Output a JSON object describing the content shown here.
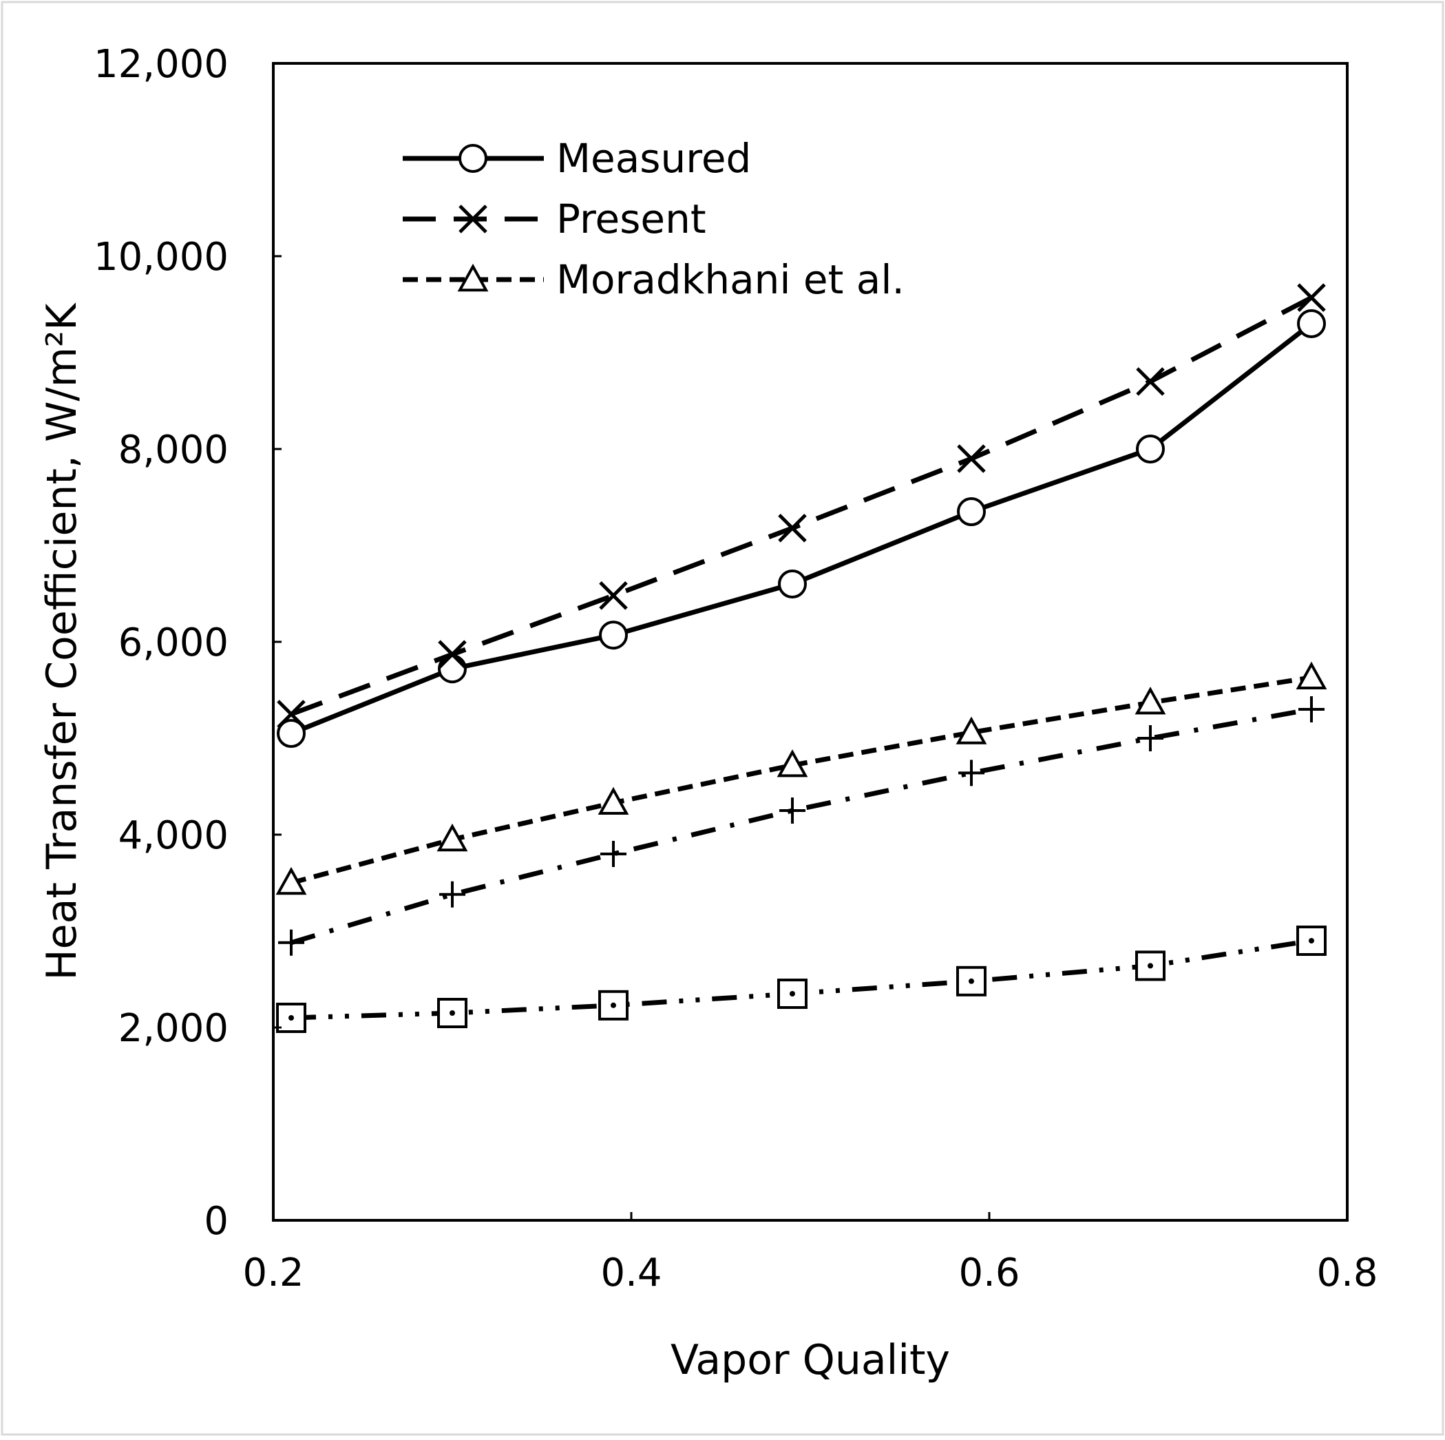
{
  "chart_data": {
    "type": "line",
    "xlabel": "Vapor Quality",
    "ylabel": "Heat Transfer Coefficient, W/m²K",
    "xlim": [
      0.2,
      0.8
    ],
    "ylim": [
      0,
      12000
    ],
    "xticks": [
      0.2,
      0.4,
      0.6,
      0.8
    ],
    "xtick_labels": [
      "0.2",
      "0.4",
      "0.6",
      "0.8"
    ],
    "yticks": [
      0,
      2000,
      4000,
      6000,
      8000,
      10000,
      12000
    ],
    "ytick_labels": [
      "0",
      "2,000",
      "4,000",
      "6,000",
      "8,000",
      "10,000",
      "12,000"
    ],
    "grid": false,
    "legend_position": "top-left",
    "x": [
      0.21,
      0.3,
      0.39,
      0.49,
      0.59,
      0.69,
      0.78
    ],
    "series": [
      {
        "name": "Measured",
        "marker": "circle",
        "line_style": "solid",
        "values": [
          5050,
          5720,
          6070,
          6600,
          7350,
          8000,
          9300
        ]
      },
      {
        "name": "Present",
        "marker": "x",
        "line_style": "long-dash",
        "values": [
          5250,
          5870,
          6480,
          7180,
          7900,
          8700,
          9570
        ]
      },
      {
        "name": "Moradkhani et al.",
        "marker": "triangle",
        "line_style": "short-dash",
        "values": [
          3500,
          3950,
          4330,
          4720,
          5060,
          5370,
          5630
        ]
      },
      {
        "name": "",
        "marker": "plus",
        "line_style": "dash-dot",
        "values": [
          2880,
          3380,
          3800,
          4250,
          4640,
          5000,
          5300
        ]
      },
      {
        "name": "",
        "marker": "square-dot",
        "line_style": "dash-dot-dot",
        "values": [
          2100,
          2150,
          2230,
          2350,
          2480,
          2640,
          2900
        ]
      }
    ]
  }
}
